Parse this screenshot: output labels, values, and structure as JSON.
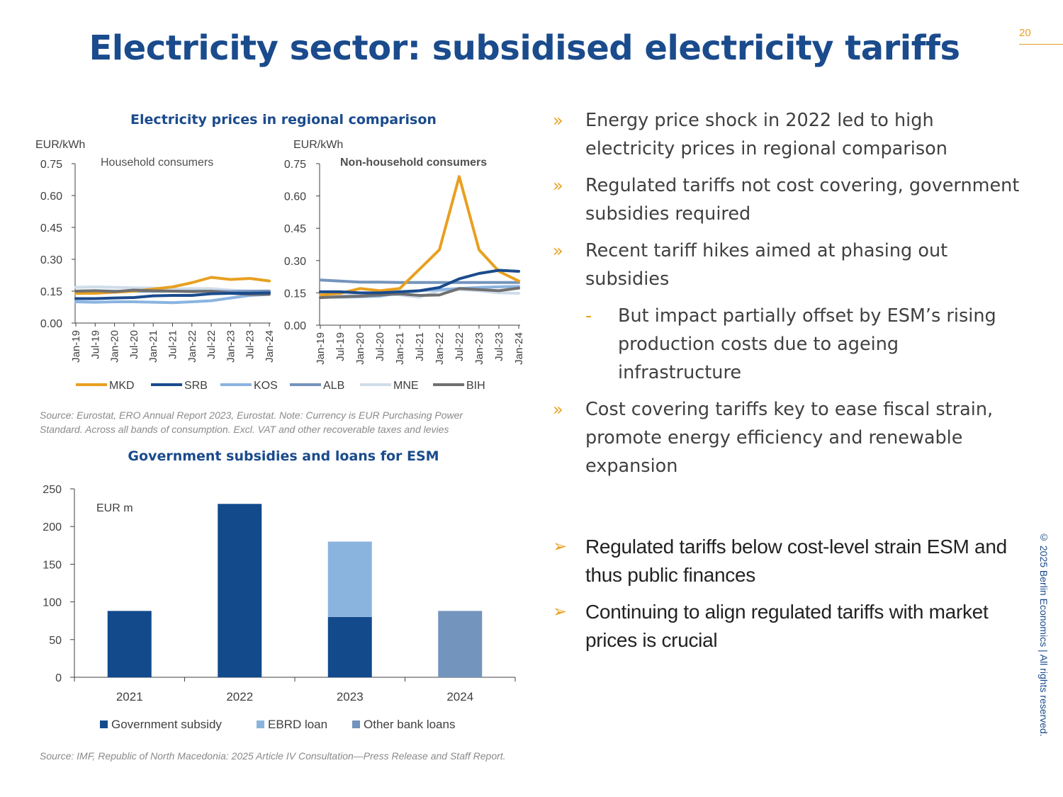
{
  "header": {
    "title": "Electricity sector: subsidised electricity tariffs",
    "page_number": "20",
    "copyright": "© 2025 Berlin Economics | All rights reserved."
  },
  "price_chart": {
    "title": "Electricity prices in regional comparison",
    "source": "Source: Eurostat, ERO Annual Report 2023, Eurostat. Note: Currency is EUR Purchasing Power Standard. Across all bands of consumption. Excl. VAT and other recoverable taxes and levies"
  },
  "subsidy_chart": {
    "title": "Government subsidies and loans for ESM",
    "source": "Source: IMF, Republic of North Macedonia: 2025 Article IV Consultation—Press Release and Staff Report."
  },
  "bullets": [
    {
      "text": "Energy price shock in 2022 led to high electricity prices in regional comparison"
    },
    {
      "text": "Regulated tariffs not cost covering, government subsidies required"
    },
    {
      "text": "Recent tariff hikes aimed at phasing out subsidies"
    }
  ],
  "sub_bullet": {
    "marker": "-",
    "text": "But impact partially offset by ESM’s rising production costs due to ageing infrastructure"
  },
  "bullet_last": {
    "text": "Cost covering tariffs key to ease fiscal strain, promote energy efficiency and renewable expansion"
  },
  "key_points": [
    {
      "text": "Regulated tariffs below cost-level strain ESM and thus public finances"
    },
    {
      "text": "Continuing to align regulated tariffs with market prices is crucial"
    }
  ],
  "markers": {
    "bullet": "»",
    "key": "➢"
  },
  "chart_data": [
    {
      "type": "line",
      "title": "Household consumers",
      "ylabel": "EUR/kWh",
      "ylim": [
        0,
        0.75
      ],
      "yticks": [
        "0.75",
        "0.60",
        "0.45",
        "0.30",
        "0.15",
        "0.00"
      ],
      "x": [
        "Jan-19",
        "Jul-19",
        "Jan-20",
        "Jul-20",
        "Jan-21",
        "Jul-21",
        "Jan-22",
        "Jul-22",
        "Jan-23",
        "Jul-23",
        "Jan-24"
      ],
      "series": [
        {
          "name": "MKD",
          "color": "#e8a020",
          "values": [
            0.14,
            0.14,
            0.145,
            0.15,
            0.16,
            0.17,
            0.19,
            0.215,
            0.205,
            0.21,
            0.198
          ]
        },
        {
          "name": "SRB",
          "color": "#1a4b8c",
          "values": [
            0.115,
            0.115,
            0.118,
            0.12,
            0.128,
            0.13,
            0.13,
            0.138,
            0.14,
            0.14,
            0.142
          ]
        },
        {
          "name": "KOS",
          "color": "#8ab4e0",
          "values": [
            0.1,
            0.098,
            0.1,
            0.1,
            0.098,
            0.096,
            0.1,
            0.105,
            0.118,
            0.13,
            0.135
          ]
        },
        {
          "name": "ALB",
          "color": "#7494bc",
          "values": [
            0.15,
            0.152,
            0.15,
            0.15,
            0.15,
            0.15,
            0.15,
            0.15,
            0.148,
            0.15,
            0.15
          ]
        },
        {
          "name": "MNE",
          "color": "#d0dcea",
          "values": [
            0.168,
            0.17,
            0.168,
            0.166,
            0.165,
            0.16,
            0.162,
            0.162,
            0.155,
            0.15,
            0.152
          ]
        },
        {
          "name": "BIH",
          "color": "#707070",
          "values": [
            0.15,
            0.152,
            0.148,
            0.155,
            0.152,
            0.15,
            0.148,
            0.15,
            0.14,
            0.135,
            0.135
          ]
        }
      ]
    },
    {
      "type": "line",
      "title": "Non-household consumers",
      "ylabel": "EUR/kWh",
      "ylim": [
        0,
        0.75
      ],
      "yticks": [
        "0.75",
        "0.60",
        "0.45",
        "0.30",
        "0.15",
        "0.00"
      ],
      "x": [
        "Jan-19",
        "Jul-19",
        "Jan-20",
        "Jul-20",
        "Jan-21",
        "Jul-21",
        "Jan-22",
        "Jul-22",
        "Jan-23",
        "Jul-23",
        "Jan-24"
      ],
      "series": [
        {
          "name": "MKD",
          "color": "#e8a020",
          "values": [
            0.14,
            0.148,
            0.17,
            0.16,
            0.17,
            0.26,
            0.35,
            0.69,
            0.35,
            0.25,
            0.205
          ]
        },
        {
          "name": "SRB",
          "color": "#1a4b8c",
          "values": [
            0.155,
            0.155,
            0.15,
            0.15,
            0.155,
            0.16,
            0.175,
            0.215,
            0.24,
            0.255,
            0.25
          ]
        },
        {
          "name": "KOS",
          "color": "#8ab4e0",
          "values": [
            0.13,
            0.13,
            0.132,
            0.135,
            0.15,
            0.16,
            0.165,
            0.17,
            0.175,
            0.178,
            0.18
          ]
        },
        {
          "name": "ALB",
          "color": "#7494bc",
          "values": [
            0.21,
            0.205,
            0.2,
            0.2,
            0.198,
            0.198,
            0.198,
            0.198,
            0.198,
            0.198,
            0.198
          ]
        },
        {
          "name": "MNE",
          "color": "#d0dcea",
          "values": [
            0.14,
            0.135,
            0.14,
            0.15,
            0.14,
            0.13,
            0.16,
            0.165,
            0.16,
            0.15,
            0.148
          ]
        },
        {
          "name": "BIH",
          "color": "#707070",
          "values": [
            0.128,
            0.132,
            0.135,
            0.14,
            0.145,
            0.138,
            0.14,
            0.17,
            0.165,
            0.16,
            0.172
          ]
        }
      ]
    },
    {
      "type": "bar",
      "stacked": true,
      "title": "Government subsidies and loans for ESM",
      "ylabel": "EUR m",
      "ylim": [
        0,
        250
      ],
      "yticks": [
        "250",
        "200",
        "150",
        "100",
        "50",
        "0"
      ],
      "categories": [
        "2021",
        "2022",
        "2023",
        "2024"
      ],
      "series": [
        {
          "name": "Government subsidy",
          "color": "#124a8c",
          "values": [
            88,
            230,
            80,
            0
          ]
        },
        {
          "name": "EBRD loan",
          "color": "#8ab4de",
          "values": [
            0,
            0,
            100,
            0
          ]
        },
        {
          "name": "Other bank loans",
          "color": "#7394bd",
          "values": [
            0,
            0,
            0,
            88
          ]
        }
      ]
    }
  ]
}
